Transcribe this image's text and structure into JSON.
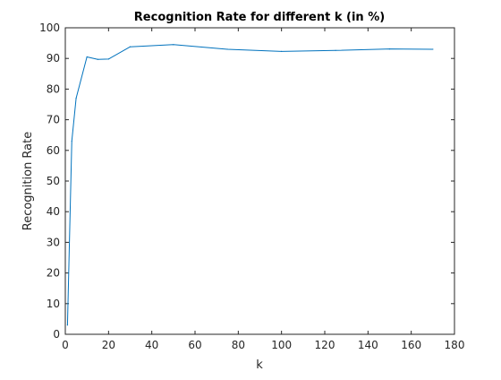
{
  "chart_data": {
    "type": "line",
    "title": "Recognition Rate for different k (in %)",
    "xlabel": "k",
    "ylabel": "Recognition Rate",
    "xlim": [
      0,
      180
    ],
    "ylim": [
      0,
      100
    ],
    "xticks": [
      0,
      20,
      40,
      60,
      80,
      100,
      120,
      140,
      160,
      180
    ],
    "yticks": [
      0,
      10,
      20,
      30,
      40,
      50,
      60,
      70,
      80,
      90,
      100
    ],
    "grid": false,
    "legend": "none",
    "series": [
      {
        "color": "#0072BD",
        "x": [
          1,
          3,
          5,
          10,
          15,
          20,
          30,
          50,
          75,
          100,
          125,
          150,
          170
        ],
        "y": [
          3,
          63,
          77,
          90.5,
          89.7,
          89.8,
          93.8,
          94.5,
          93.0,
          92.3,
          92.6,
          93.1,
          93.0
        ]
      }
    ]
  }
}
